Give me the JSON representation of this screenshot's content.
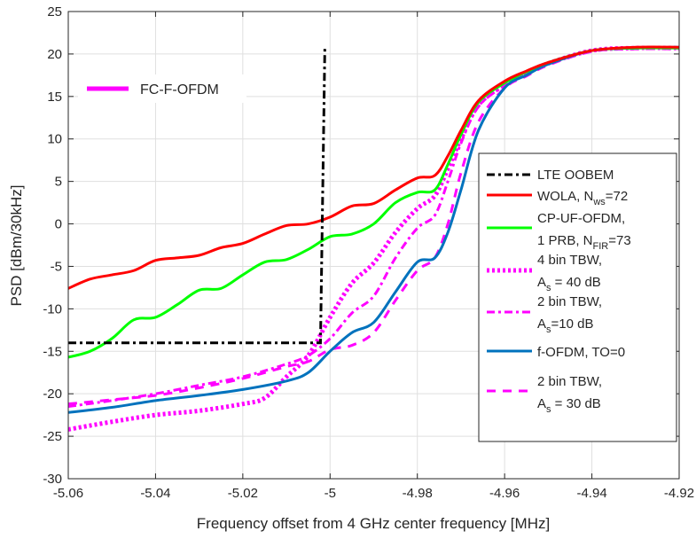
{
  "chart_data": {
    "type": "line",
    "title": "",
    "xlabel": "Frequency offset from 4 GHz center frequency [MHz]",
    "ylabel": "PSD [dBm/30kHz]",
    "xlim": [
      -5.06,
      -4.92
    ],
    "ylim": [
      -30,
      25
    ],
    "xticks": [
      -5.06,
      -5.04,
      -5.02,
      -5,
      -4.98,
      -4.96,
      -4.94,
      -4.92
    ],
    "xtick_labels": [
      "-5.06",
      "-5.04",
      "-5.02",
      "-5",
      "-4.98",
      "-4.96",
      "-4.94",
      "-4.92"
    ],
    "yticks": [
      -30,
      -25,
      -20,
      -15,
      -10,
      -5,
      0,
      5,
      10,
      15,
      20,
      25
    ],
    "ytick_labels": [
      "-30",
      "-25",
      "-20",
      "-15",
      "-10",
      "-5",
      "0",
      "5",
      "10",
      "15",
      "20",
      "25"
    ],
    "grid": true,
    "legend_placement": "right",
    "series": [
      {
        "name": "LTE OOBEM",
        "color": "#000000",
        "style": "dashdot",
        "x": [
          -5.06,
          -5.0022,
          -5.0012
        ],
        "y": [
          -14,
          -14,
          20.7
        ]
      },
      {
        "name": "WOLA, N_ws=72",
        "legend": [
          "WOLA, N",
          "ws",
          "=72"
        ],
        "color": "#ff0000",
        "style": "solid",
        "x": [
          -5.06,
          -5.055,
          -5.05,
          -5.045,
          -5.04,
          -5.035,
          -5.03,
          -5.025,
          -5.02,
          -5.015,
          -5.01,
          -5.005,
          -5.0,
          -4.995,
          -4.99,
          -4.985,
          -4.98,
          -4.976,
          -4.973,
          -4.97,
          -4.966,
          -4.96,
          -4.955,
          -4.95,
          -4.94,
          -4.93,
          -4.92
        ],
        "y": [
          -7.6,
          -6.5,
          -6.0,
          -5.5,
          -4.3,
          -4.0,
          -3.7,
          -2.8,
          -2.3,
          -1.2,
          -0.2,
          0.0,
          0.8,
          2.1,
          2.4,
          4.0,
          5.4,
          5.7,
          8,
          11,
          14.5,
          16.8,
          18,
          19,
          20.4,
          20.8,
          20.8
        ]
      },
      {
        "name": "CP-UF-OFDM, 1 PRB, N_FIR=73",
        "legend": [
          "CP-UF-OFDM,",
          "1 PRB, N",
          "FIR",
          "=73"
        ],
        "color": "#00ff00",
        "style": "solid",
        "x": [
          -5.06,
          -5.055,
          -5.05,
          -5.045,
          -5.04,
          -5.035,
          -5.03,
          -5.025,
          -5.02,
          -5.015,
          -5.01,
          -5.005,
          -5.0,
          -4.995,
          -4.99,
          -4.985,
          -4.98,
          -4.976,
          -4.973,
          -4.97,
          -4.966,
          -4.96,
          -4.955,
          -4.95,
          -4.94,
          -4.93,
          -4.92
        ],
        "y": [
          -15.7,
          -15,
          -13.5,
          -11.3,
          -11,
          -9.5,
          -7.8,
          -7.6,
          -6,
          -4.5,
          -4.2,
          -3,
          -1.5,
          -1.2,
          0,
          2.5,
          3.7,
          4,
          7,
          10.5,
          14.3,
          16.6,
          17.9,
          19,
          20.4,
          20.7,
          20.7
        ]
      },
      {
        "name": "4 bin TBW, A_s = 40 dB",
        "legend": [
          "4 bin TBW,",
          "A",
          "s",
          " = 40 dB"
        ],
        "color": "#ff00ff",
        "style": "dotted",
        "x": [
          -5.06,
          -5.05,
          -5.04,
          -5.03,
          -5.02,
          -5.015,
          -5.01,
          -5.005,
          -5.0,
          -4.995,
          -4.99,
          -4.985,
          -4.98,
          -4.976,
          -4.973,
          -4.97,
          -4.966,
          -4.96,
          -4.955,
          -4.95,
          -4.94,
          -4.93,
          -4.92
        ],
        "y": [
          -24.2,
          -23.3,
          -22.5,
          -22,
          -21.2,
          -20.5,
          -18,
          -15.5,
          -11,
          -7,
          -4.6,
          -1,
          1.8,
          3.3,
          6.5,
          10,
          14,
          16.4,
          17.8,
          18.9,
          20.4,
          20.7,
          20.7
        ]
      },
      {
        "name": "2 bin TBW, A_s=10 dB",
        "legend": [
          "2 bin TBW,",
          "A",
          "s",
          "=10 dB"
        ],
        "color": "#ff00ff",
        "style": "dashdot",
        "x": [
          -5.06,
          -5.05,
          -5.04,
          -5.03,
          -5.02,
          -5.01,
          -5.005,
          -5.0,
          -4.995,
          -4.99,
          -4.985,
          -4.98,
          -4.976,
          -4.973,
          -4.97,
          -4.966,
          -4.96,
          -4.955,
          -4.95,
          -4.94,
          -4.93,
          -4.92
        ],
        "y": [
          -21.5,
          -20.8,
          -20,
          -19,
          -18,
          -16.5,
          -15.5,
          -13.5,
          -10.5,
          -8.5,
          -4,
          -0.5,
          1,
          5,
          9.5,
          13.8,
          16.3,
          17.7,
          18.9,
          20.4,
          20.7,
          20.7
        ]
      },
      {
        "name": "f-OFDM, TO=0",
        "legend": [
          "f-OFDM, TO=0"
        ],
        "color": "#0072bd",
        "style": "solid",
        "x": [
          -5.06,
          -5.05,
          -5.04,
          -5.03,
          -5.02,
          -5.01,
          -5.005,
          -5.0,
          -4.995,
          -4.99,
          -4.985,
          -4.98,
          -4.976,
          -4.973,
          -4.97,
          -4.966,
          -4.96,
          -4.955,
          -4.95,
          -4.94,
          -4.93,
          -4.92
        ],
        "y": [
          -22.2,
          -21.6,
          -20.8,
          -20.2,
          -19.5,
          -18.5,
          -17.5,
          -15,
          -12.8,
          -11.6,
          -8,
          -4.5,
          -4,
          -1,
          4,
          11,
          16,
          17.5,
          18.8,
          20.4,
          20.7,
          20.8
        ]
      },
      {
        "name": "2 bin TBW, A_s = 30 dB",
        "legend": [
          "2 bin TBW,",
          "A",
          "s",
          " = 30 dB"
        ],
        "color": "#ff00ff",
        "style": "dashed",
        "x": [
          -5.06,
          -5.05,
          -5.04,
          -5.03,
          -5.02,
          -5.01,
          -5.005,
          -5.0,
          -4.995,
          -4.99,
          -4.985,
          -4.98,
          -4.976,
          -4.973,
          -4.97,
          -4.966,
          -4.96,
          -4.955,
          -4.95,
          -4.94,
          -4.93,
          -4.92
        ],
        "y": [
          -21.2,
          -20.7,
          -20.2,
          -19.3,
          -18.2,
          -16.8,
          -16.2,
          -14.8,
          -14.3,
          -12.8,
          -9,
          -5.5,
          -4,
          0,
          6,
          12,
          16,
          17.4,
          18.7,
          20.3,
          20.6,
          20.6
        ]
      }
    ],
    "extra_legend": {
      "name": "FC-F-OFDM",
      "color": "#ff00ff",
      "style": "solid",
      "placement": "top-left"
    }
  }
}
